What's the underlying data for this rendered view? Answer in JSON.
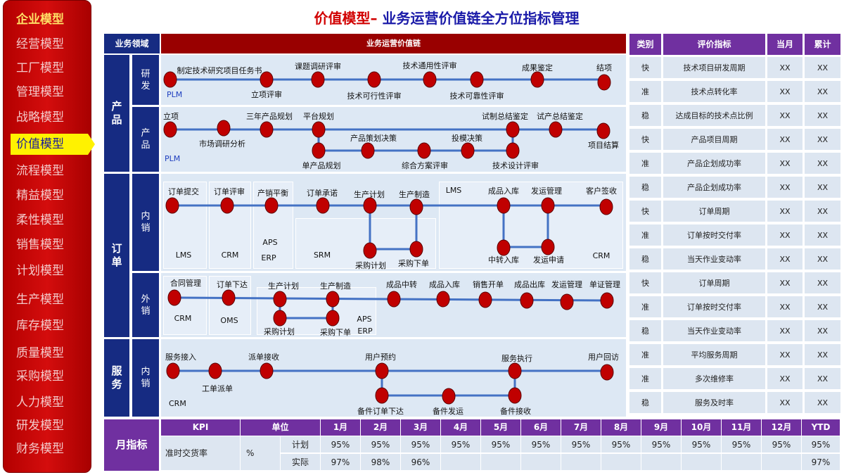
{
  "sidebar": {
    "brand": "企业模型",
    "items": [
      {
        "label": "经营模型"
      },
      {
        "label": "工厂模型"
      },
      {
        "label": "管理模型"
      },
      {
        "label": "战略模型"
      },
      {
        "label": "价值模型",
        "active": true
      },
      {
        "label": "流程模型"
      },
      {
        "label": "精益模型"
      },
      {
        "label": "柔性模型"
      },
      {
        "label": "销售模型"
      },
      {
        "label": "计划模型"
      },
      {
        "label": "生产模型"
      },
      {
        "label": "库存模型"
      },
      {
        "label": "质量模型"
      },
      {
        "label": "采购模型"
      },
      {
        "label": "人力模型"
      },
      {
        "label": "研发模型"
      },
      {
        "label": "财务模型"
      }
    ]
  },
  "title": {
    "red": "价值模型–",
    "blue": " 业务运营价值链全方位指标管理"
  },
  "grid": {
    "domain_header": "业务领域",
    "chain_header": "业务运营价值链",
    "domains": {
      "product": "产\n品",
      "order": "订\n单",
      "service": "服\n务"
    },
    "subdomains": {
      "rd": "研\n发",
      "prod": "产\n品",
      "domestic": "内\n销",
      "export": "外\n销",
      "svc": "内\n销"
    }
  },
  "flows": {
    "rd": {
      "system": "PLM",
      "nodes": [
        "制定技术研究项目任务书",
        "立项评审",
        "课题调研评审",
        "技术可行性评审",
        "技术通用性评审",
        "技术可靠性评审",
        "成果鉴定",
        "结项"
      ]
    },
    "prod": {
      "system": "PLM",
      "nodes": [
        "立项",
        "市场调研分析",
        "三年产品规划",
        "平台规划",
        "单产品规划",
        "产品策划决策",
        "综合方案评审",
        "投模决策",
        "技术设计评审",
        "试制总结鉴定",
        "试产总结鉴定",
        "项目结算"
      ]
    },
    "domestic": {
      "nodes": [
        "订单提交",
        "订单评审",
        "产销平衡",
        "订单承诺",
        "生产计划",
        "生产制造",
        "采购计划",
        "采购下单",
        "成品入库",
        "发运管理",
        "客户签收",
        "中转入库",
        "发运申请"
      ],
      "systems": [
        "LMS",
        "CRM",
        "APS",
        "ERP",
        "SRM",
        "LMS",
        "CRM"
      ]
    },
    "export": {
      "nodes": [
        "合同管理",
        "订单下达",
        "生产计划",
        "生产制造",
        "采购计划",
        "采购下单",
        "成品中转",
        "成品入库",
        "销售开单",
        "成品出库",
        "发运管理",
        "单证管理"
      ],
      "systems": [
        "CRM",
        "OMS",
        "APS",
        "ERP"
      ]
    },
    "service": {
      "system": "CRM",
      "nodes": [
        "服务接入",
        "工单派单",
        "派单接收",
        "用户预约",
        "备件订单下达",
        "备件发运",
        "备件接收",
        "服务执行",
        "用户回访"
      ]
    }
  },
  "metrics": {
    "headers": [
      "类别",
      "评价指标",
      "当月",
      "累计"
    ],
    "rows": [
      {
        "cat": "快",
        "name": "技术项目研发周期",
        "month": "XX",
        "total": "XX"
      },
      {
        "cat": "准",
        "name": "技术点转化率",
        "month": "XX",
        "total": "XX"
      },
      {
        "cat": "稳",
        "name": "达成目标的技术点比例",
        "month": "XX",
        "total": "XX"
      },
      {
        "cat": "快",
        "name": "产品项目周期",
        "month": "XX",
        "total": "XX"
      },
      {
        "cat": "准",
        "name": "产品企划成功率",
        "month": "XX",
        "total": "XX"
      },
      {
        "cat": "稳",
        "name": "产品企划成功率",
        "month": "XX",
        "total": "XX"
      },
      {
        "cat": "快",
        "name": "订单周期",
        "month": "XX",
        "total": "XX"
      },
      {
        "cat": "准",
        "name": "订单按时交付率",
        "month": "XX",
        "total": "XX"
      },
      {
        "cat": "稳",
        "name": "当天作业变动率",
        "month": "XX",
        "total": "XX"
      },
      {
        "cat": "快",
        "name": "订单周期",
        "month": "XX",
        "total": "XX"
      },
      {
        "cat": "准",
        "name": "订单按时交付率",
        "month": "XX",
        "total": "XX"
      },
      {
        "cat": "稳",
        "name": "当天作业变动率",
        "month": "XX",
        "total": "XX"
      },
      {
        "cat": "准",
        "name": "平均服务周期",
        "month": "XX",
        "total": "XX"
      },
      {
        "cat": "准",
        "name": "多次维修率",
        "month": "XX",
        "total": "XX"
      },
      {
        "cat": "稳",
        "name": "服务及时率",
        "month": "XX",
        "total": "XX"
      }
    ]
  },
  "kpi": {
    "section_label": "月指标",
    "headers": [
      "KPI",
      "单位",
      "1月",
      "2月",
      "3月",
      "4月",
      "5月",
      "6月",
      "7月",
      "8月",
      "9月",
      "10月",
      "11月",
      "12月",
      "YTD"
    ],
    "name": "准时交货率",
    "unit": "%",
    "plan_label": "计划",
    "actual_label": "实际",
    "plan": [
      "95%",
      "95%",
      "95%",
      "95%",
      "95%",
      "95%",
      "95%",
      "95%",
      "95%",
      "95%",
      "95%",
      "95%",
      "95%"
    ],
    "actual": [
      "97%",
      "98%",
      "96%",
      "",
      "",
      "",
      "",
      "",
      "",
      "",
      "",
      "",
      "97%"
    ]
  },
  "colors": {
    "navy": "#162b82",
    "maroon": "#990000",
    "purple": "#7030a0",
    "node": "#c00000",
    "line": "#4472c4",
    "pane": "#dde8f4"
  }
}
